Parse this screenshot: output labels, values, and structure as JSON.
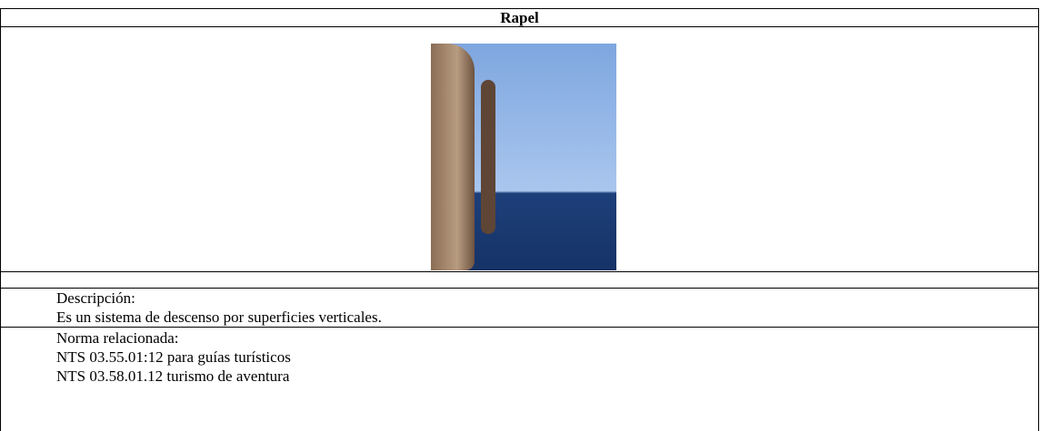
{
  "table": {
    "title": "Rapel",
    "description_label": "Descripción:",
    "description": "Es un sistema de descenso por superficies verticales.",
    "norm_label": "Norma relacionada:",
    "norms": [
      "NTS 03.55.01:12 para guías turísticos",
      "NTS 03.58.01.12 turismo de aventura"
    ]
  }
}
